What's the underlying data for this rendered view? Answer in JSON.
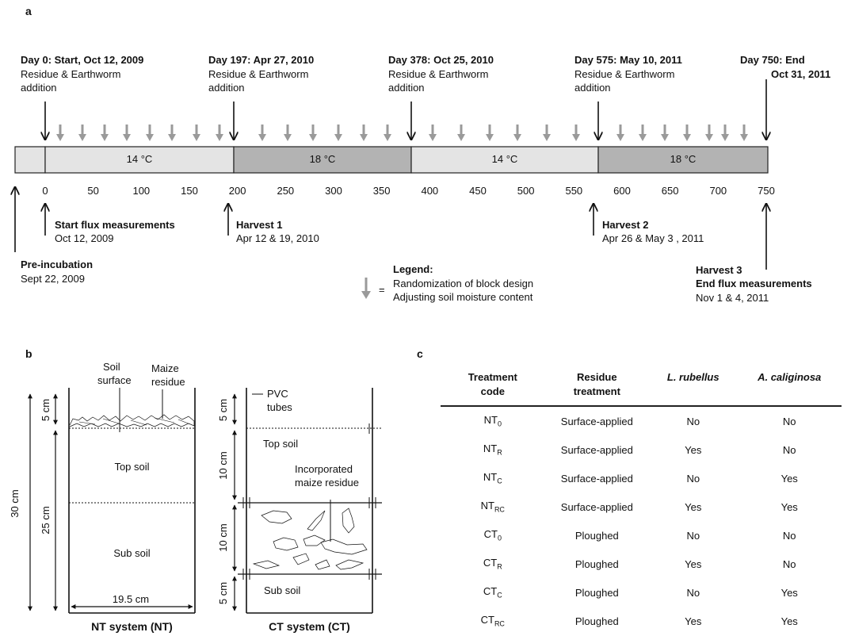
{
  "panel_labels": {
    "a": "a",
    "b": "b",
    "c": "c"
  },
  "timeline": {
    "events": [
      {
        "head": "Day 0: Start, Oct 12, 2009",
        "line2": "Residue & Earthworm",
        "line3": "addition"
      },
      {
        "head": "Day 197: Apr 27, 2010",
        "line2": "Residue & Earthworm",
        "line3": "addition"
      },
      {
        "head": "Day 378: Oct 25, 2010",
        "line2": "Residue & Earthworm",
        "line3": "addition"
      },
      {
        "head": "Day 575: May 10, 2011",
        "line2": "Residue &  Earthworm",
        "line3": "addition"
      },
      {
        "head": "Day 750: End",
        "line2": "Oct 31,  2011"
      }
    ],
    "temperatures": [
      "14 °C",
      "18 °C",
      "14 °C",
      "18 °C"
    ],
    "axis_ticks": [
      "0",
      "50",
      "100",
      "150",
      "200",
      "250",
      "300",
      "350",
      "400",
      "450",
      "500",
      "550",
      "600",
      "650",
      "700",
      "750"
    ],
    "bottom_events": [
      {
        "head": "Start flux measurements",
        "sub": "Oct 12, 2009"
      },
      {
        "head": "Harvest 1",
        "sub": "Apr 12 & 19, 2010"
      },
      {
        "head": "Harvest 2",
        "sub": "Apr 26 & May 3 , 2011"
      },
      {
        "head": "Harvest 3",
        "head2": "End flux measurements",
        "sub": "Nov 1 & 4, 2011"
      },
      {
        "head": "Pre-incubation",
        "sub": "Sept 22, 2009"
      }
    ],
    "legend": {
      "title": "Legend:",
      "eq": "=",
      "line1": "Randomization of block design",
      "line2": "Adjusting soil moisture content"
    },
    "colors": {
      "light_period": "#e4e4e4",
      "dark_period": "#b3b3b3",
      "marker": "#9a9a9a"
    }
  },
  "nt_system": {
    "soil_surface_1": "Soil",
    "soil_surface_2": "surface",
    "maize_residue_1": "Maize",
    "maize_residue_2": "residue",
    "top_soil": "Top soil",
    "sub_soil": "Sub soil",
    "depth_total": "30 cm",
    "depth_top": "5 cm",
    "depth_sub": "25 cm",
    "width": "19.5 cm",
    "caption": "NT system (NT)"
  },
  "ct_system": {
    "pvc_1": "PVC",
    "pvc_2": "tubes",
    "top_soil": "Top soil",
    "incorp_1": "Incorporated",
    "incorp_2": "maize residue",
    "sub_soil": "Sub soil",
    "depth_1": "5 cm",
    "depth_2": "10 cm",
    "depth_3": "10 cm",
    "depth_4": "5 cm",
    "caption": "CT system (CT)"
  },
  "treatment_table": {
    "headers": [
      {
        "l1": "Treatment",
        "l2": "code"
      },
      {
        "l1": "Residue",
        "l2": "treatment"
      },
      {
        "l1": "L. rubellus",
        "l2": ""
      },
      {
        "l1": "A. caliginosa",
        "l2": ""
      }
    ],
    "rows": [
      {
        "base": "NT",
        "sub": "0",
        "residue": "Surface-applied",
        "lr": "No",
        "ac": "No"
      },
      {
        "base": "NT",
        "sub": "R",
        "residue": "Surface-applied",
        "lr": "Yes",
        "ac": "No"
      },
      {
        "base": "NT",
        "sub": "C",
        "residue": "Surface-applied",
        "lr": "No",
        "ac": "Yes"
      },
      {
        "base": "NT",
        "sub": "RC",
        "residue": "Surface-applied",
        "lr": "Yes",
        "ac": "Yes"
      },
      {
        "base": "CT",
        "sub": "0",
        "residue": "Ploughed",
        "lr": "No",
        "ac": "No"
      },
      {
        "base": "CT",
        "sub": "R",
        "residue": "Ploughed",
        "lr": "Yes",
        "ac": "No"
      },
      {
        "base": "CT",
        "sub": "C",
        "residue": "Ploughed",
        "lr": "No",
        "ac": "Yes"
      },
      {
        "base": "CT",
        "sub": "RC",
        "residue": "Ploughed",
        "lr": "Yes",
        "ac": "Yes"
      }
    ]
  }
}
